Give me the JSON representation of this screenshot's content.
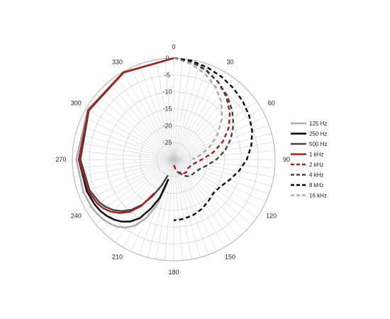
{
  "chart_data": {
    "type": "polar-line",
    "title": "",
    "angle_labels": [
      "0",
      "30",
      "60",
      "90",
      "120",
      "150",
      "180",
      "210",
      "240",
      "270",
      "300",
      "330"
    ],
    "angle_ticks_deg": [
      0,
      30,
      60,
      90,
      120,
      150,
      180,
      210,
      240,
      270,
      300,
      330
    ],
    "angle_grid_step_deg": 5,
    "radial_labels": [
      "0",
      "-5",
      "-10",
      "-15",
      "-20",
      "-25"
    ],
    "radial_ticks_db": [
      0,
      -5,
      -10,
      -15,
      -20,
      -25
    ],
    "rlim": [
      -30,
      0
    ],
    "grid": true,
    "legend_position": "right",
    "series": [
      {
        "name": "125 Hz",
        "color": "#aaaaaa",
        "dash": "solid",
        "angles": [
          0,
          330,
          300,
          270,
          250,
          240,
          235,
          230,
          225,
          220,
          215,
          210,
          205,
          200,
          195
        ],
        "values": [
          0,
          -0.2,
          -0.6,
          -1.2,
          -1.6,
          -1.9,
          -2.2,
          -2.6,
          -3.2,
          -4.0,
          -5.4,
          -7.5,
          -11,
          -16,
          -23
        ]
      },
      {
        "name": "250 Hz",
        "color": "#000000",
        "dash": "solid",
        "angles": [
          0,
          330,
          300,
          270,
          250,
          240,
          235,
          230,
          225,
          220,
          215,
          210,
          205,
          200,
          195
        ],
        "values": [
          0,
          -0.3,
          -0.9,
          -1.9,
          -2.6,
          -3.1,
          -3.5,
          -4.1,
          -4.9,
          -6.0,
          -7.6,
          -10,
          -14,
          -18,
          -24
        ]
      },
      {
        "name": "500 Hz",
        "color": "#444444",
        "dash": "solid",
        "angles": [
          0,
          330,
          300,
          270,
          250,
          240,
          235,
          230,
          225,
          220,
          215,
          210,
          205,
          200
        ],
        "values": [
          0,
          -0.3,
          -1.0,
          -2.4,
          -3.5,
          -4.6,
          -5.5,
          -6.7,
          -8.4,
          -10.6,
          -13.6,
          -17.5,
          -21.5,
          -25
        ]
      },
      {
        "name": "1 kHz",
        "color": "#a8201a",
        "dash": "solid",
        "angles": [
          0,
          330,
          300,
          270,
          250,
          240,
          235,
          230,
          225,
          220,
          215,
          210
        ],
        "values": [
          0,
          -0.2,
          -0.8,
          -2.0,
          -3.0,
          -3.9,
          -4.7,
          -5.9,
          -7.6,
          -9.8,
          -13.2,
          -18.5
        ]
      },
      {
        "name": "2 kHz",
        "color": "#a8201a",
        "dash": "dashed",
        "angles": [
          0,
          10,
          20,
          30,
          40,
          50,
          60,
          70,
          80,
          90,
          100,
          110,
          120,
          135,
          150,
          160,
          170,
          180
        ],
        "values": [
          0,
          -0.5,
          -1.8,
          -3.6,
          -5.8,
          -8.3,
          -11.2,
          -14.5,
          -18.2,
          -21.7,
          -23.7,
          -24.6,
          -25.0,
          -24.7,
          -25.0,
          -25.8,
          -27,
          -28.5
        ]
      },
      {
        "name": "4 kHz",
        "color": "#444444",
        "dash": "dashed",
        "angles": [
          0,
          10,
          20,
          30,
          40,
          50,
          60,
          70,
          80,
          90,
          100,
          110,
          120,
          130,
          140,
          150,
          160
        ],
        "values": [
          0,
          -0.6,
          -2.0,
          -3.6,
          -5.4,
          -7.4,
          -9.6,
          -12.0,
          -14.6,
          -17.4,
          -20.0,
          -21.8,
          -22.6,
          -23.0,
          -23.5,
          -24.5,
          -26.5
        ]
      },
      {
        "name": "8 kHz",
        "color": "#000000",
        "dash": "dashed",
        "angles": [
          0,
          10,
          20,
          30,
          40,
          50,
          60,
          70,
          80,
          90,
          100,
          110,
          120,
          130,
          140,
          150,
          160,
          170,
          175,
          180
        ],
        "values": [
          0,
          -0.3,
          -1.0,
          -1.7,
          -2.5,
          -3.3,
          -4.2,
          -5.3,
          -6.7,
          -8.4,
          -10.4,
          -12.4,
          -14.0,
          -14.6,
          -14.0,
          -13.2,
          -12.6,
          -12.2,
          -12.1,
          -12.0
        ]
      },
      {
        "name": "16 kHz",
        "color": "#aaaaaa",
        "dash": "dashed",
        "angles": [
          0,
          10,
          20,
          30,
          40,
          50,
          60,
          70,
          80,
          90
        ],
        "values": [
          0,
          -1.2,
          -3.0,
          -5.2,
          -8.0,
          -11.4,
          -15.0,
          -18.6,
          -21.8,
          -24.5
        ]
      }
    ]
  }
}
